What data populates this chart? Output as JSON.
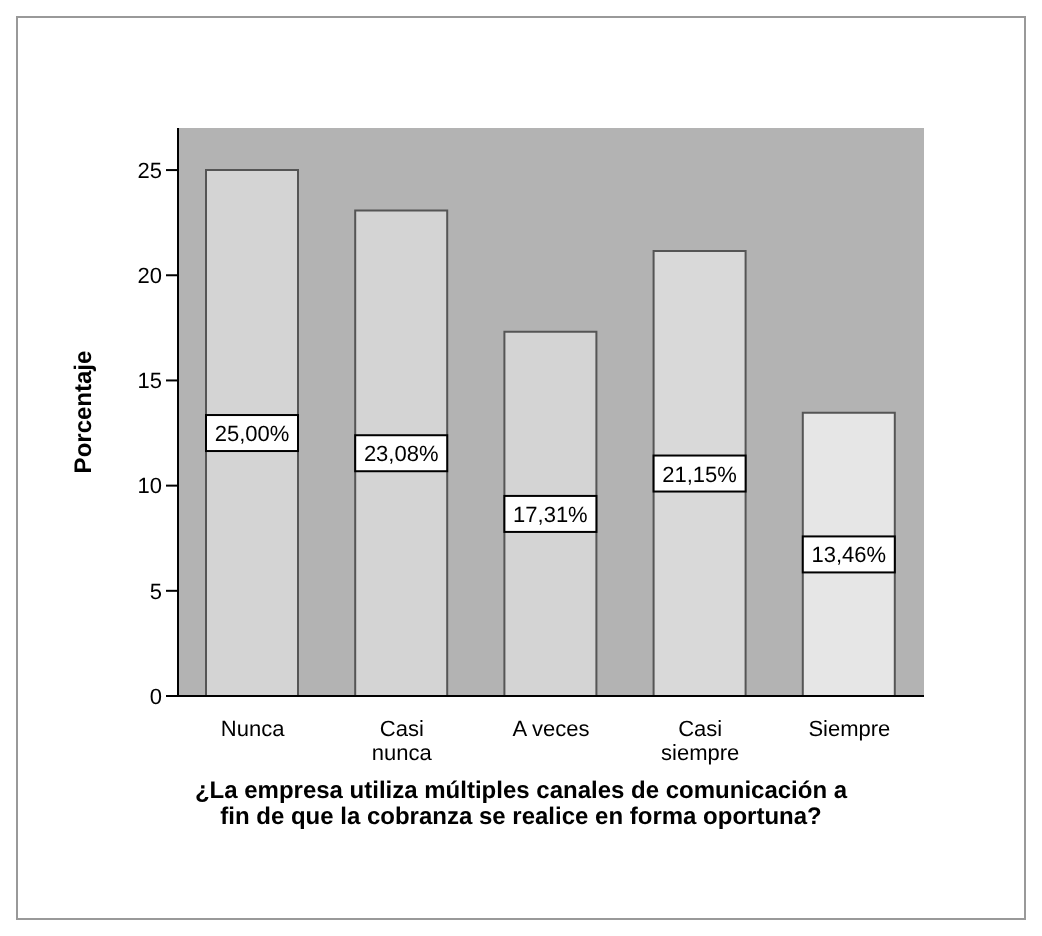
{
  "chart_data": {
    "type": "bar",
    "xlabel": "¿La empresa utiliza múltiples canales de comunicación a fin de que la cobranza se realice en forma oportuna?",
    "ylabel": "Porcentaje",
    "categories": [
      "Nunca",
      "Casi nunca",
      "A veces",
      "Casi siempre",
      "Siempre"
    ],
    "values": [
      25,
      23.08,
      17.31,
      21.15,
      13.46
    ],
    "value_labels": [
      "25,00%",
      "23,08%",
      "17,31%",
      "21,15%",
      "13,46%"
    ],
    "colors": [
      "#d4d4d4",
      "#d4d4d4",
      "#d4d4d4",
      "#d9d9d9",
      "#e6e6e6"
    ],
    "ylim": [
      0,
      27
    ],
    "yticks": [
      0,
      5,
      10,
      15,
      20,
      25
    ]
  }
}
